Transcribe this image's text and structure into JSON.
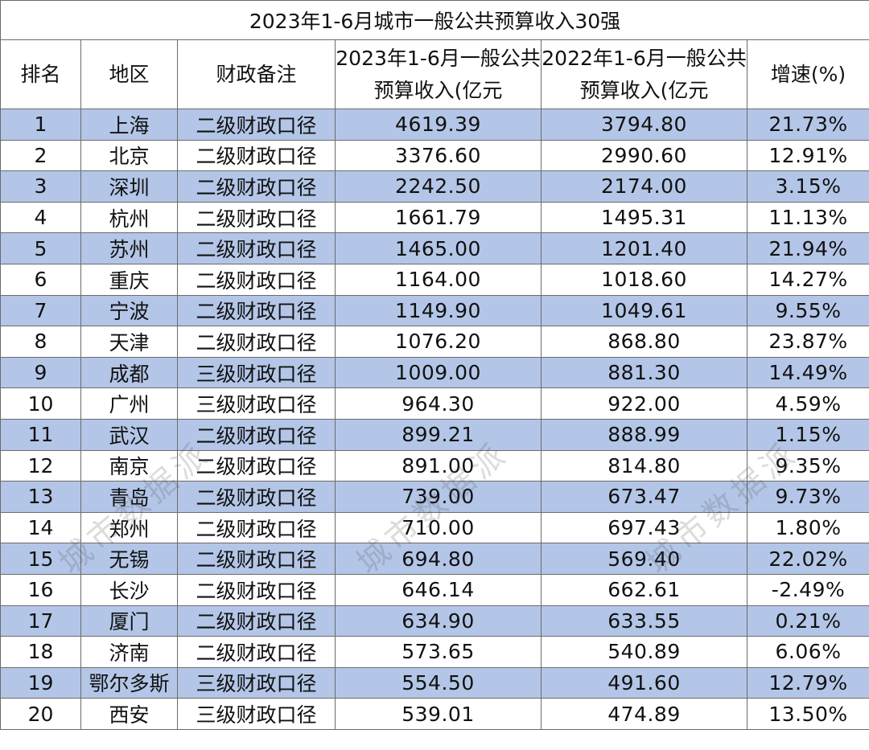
{
  "title": "2023年1-6月城市一般公共预算收入30强",
  "headers": {
    "rank": "排名",
    "region": "地区",
    "note": "财政备注",
    "y2023": "2023年1-6月一般公共预算收入(亿元",
    "y2022": "2022年1-6月一般公共预算收入(亿元",
    "growth": "增速(%)"
  },
  "rows": [
    {
      "rank": "1",
      "region": "上海",
      "note": "二级财政口径",
      "y2023": "4619.39",
      "y2022": "3794.80",
      "growth": "21.73%"
    },
    {
      "rank": "2",
      "region": "北京",
      "note": "二级财政口径",
      "y2023": "3376.60",
      "y2022": "2990.60",
      "growth": "12.91%"
    },
    {
      "rank": "3",
      "region": "深圳",
      "note": "二级财政口径",
      "y2023": "2242.50",
      "y2022": "2174.00",
      "growth": "3.15%"
    },
    {
      "rank": "4",
      "region": "杭州",
      "note": "二级财政口径",
      "y2023": "1661.79",
      "y2022": "1495.31",
      "growth": "11.13%"
    },
    {
      "rank": "5",
      "region": "苏州",
      "note": "二级财政口径",
      "y2023": "1465.00",
      "y2022": "1201.40",
      "growth": "21.94%"
    },
    {
      "rank": "6",
      "region": "重庆",
      "note": "二级财政口径",
      "y2023": "1164.00",
      "y2022": "1018.60",
      "growth": "14.27%"
    },
    {
      "rank": "7",
      "region": "宁波",
      "note": "二级财政口径",
      "y2023": "1149.90",
      "y2022": "1049.61",
      "growth": "9.55%"
    },
    {
      "rank": "8",
      "region": "天津",
      "note": "二级财政口径",
      "y2023": "1076.20",
      "y2022": "868.80",
      "growth": "23.87%"
    },
    {
      "rank": "9",
      "region": "成都",
      "note": "三级财政口径",
      "y2023": "1009.00",
      "y2022": "881.30",
      "growth": "14.49%"
    },
    {
      "rank": "10",
      "region": "广州",
      "note": "三级财政口径",
      "y2023": "964.30",
      "y2022": "922.00",
      "growth": "4.59%"
    },
    {
      "rank": "11",
      "region": "武汉",
      "note": "二级财政口径",
      "y2023": "899.21",
      "y2022": "888.99",
      "growth": "1.15%"
    },
    {
      "rank": "12",
      "region": "南京",
      "note": "二级财政口径",
      "y2023": "891.00",
      "y2022": "814.80",
      "growth": "9.35%"
    },
    {
      "rank": "13",
      "region": "青岛",
      "note": "二级财政口径",
      "y2023": "739.00",
      "y2022": "673.47",
      "growth": "9.73%"
    },
    {
      "rank": "14",
      "region": "郑州",
      "note": "二级财政口径",
      "y2023": "710.00",
      "y2022": "697.43",
      "growth": "1.80%"
    },
    {
      "rank": "15",
      "region": "无锡",
      "note": "二级财政口径",
      "y2023": "694.80",
      "y2022": "569.40",
      "growth": "22.02%"
    },
    {
      "rank": "16",
      "region": "长沙",
      "note": "二级财政口径",
      "y2023": "646.14",
      "y2022": "662.61",
      "growth": "-2.49%"
    },
    {
      "rank": "17",
      "region": "厦门",
      "note": "二级财政口径",
      "y2023": "634.90",
      "y2022": "633.55",
      "growth": "0.21%"
    },
    {
      "rank": "18",
      "region": "济南",
      "note": "二级财政口径",
      "y2023": "573.65",
      "y2022": "540.89",
      "growth": "6.06%"
    },
    {
      "rank": "19",
      "region": "鄂尔多斯",
      "note": "三级财政口径",
      "y2023": "554.50",
      "y2022": "491.60",
      "growth": "12.79%"
    },
    {
      "rank": "20",
      "region": "西安",
      "note": "三级财政口径",
      "y2023": "539.01",
      "y2022": "474.89",
      "growth": "13.50%"
    }
  ],
  "watermark": "城市数据派",
  "colors": {
    "stripe": "#b4c6e7",
    "border": "#6b6b6b",
    "background": "#ffffff"
  }
}
